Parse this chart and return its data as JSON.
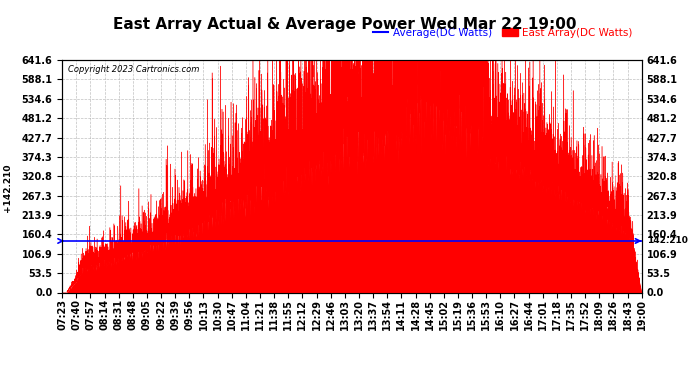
{
  "title": "East Array Actual & Average Power Wed Mar 22 19:00",
  "copyright": "Copyright 2023 Cartronics.com",
  "legend_avg": "Average(DC Watts)",
  "legend_east": "East Array(DC Watts)",
  "avg_value": 142.21,
  "ymin": 0.0,
  "ymax": 641.6,
  "yticks": [
    0.0,
    53.5,
    106.9,
    160.4,
    213.9,
    267.3,
    320.8,
    374.3,
    427.7,
    481.2,
    534.6,
    588.1,
    641.6
  ],
  "east_color": "#ff0000",
  "avg_color": "#0000ff",
  "bg_color": "#ffffff",
  "grid_color": "#b0b0b0",
  "title_fontsize": 11,
  "tick_fontsize": 7,
  "legend_fontsize": 7.5,
  "xtick_labels": [
    "07:23",
    "07:40",
    "07:57",
    "08:14",
    "08:31",
    "08:48",
    "09:05",
    "09:22",
    "09:39",
    "09:56",
    "10:13",
    "10:30",
    "10:47",
    "11:04",
    "11:21",
    "11:38",
    "11:55",
    "12:12",
    "12:29",
    "12:46",
    "13:03",
    "13:20",
    "13:37",
    "13:54",
    "14:11",
    "14:28",
    "14:45",
    "15:02",
    "15:19",
    "15:36",
    "15:53",
    "16:10",
    "16:27",
    "16:44",
    "17:01",
    "17:18",
    "17:35",
    "17:52",
    "18:09",
    "18:26",
    "18:43",
    "19:00"
  ],
  "left_label": "+142.210",
  "right_label": "142.210"
}
